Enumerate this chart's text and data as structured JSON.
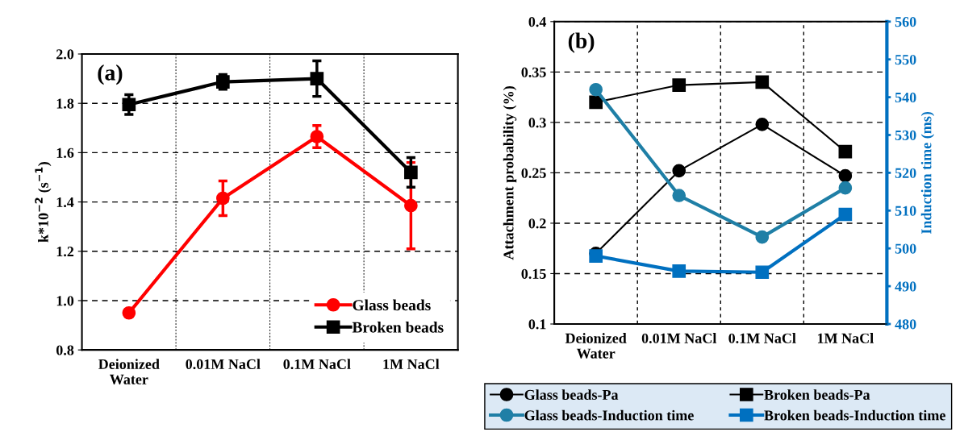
{
  "chart_data": [
    {
      "type": "line",
      "categories": [
        "Deionized\nWater",
        "0.01M NaCl",
        "0.1M NaCl",
        "1M NaCl"
      ],
      "ylabel": "k*10$^{−2}$ (s$^{−1}$)",
      "ylim": [
        0.8,
        2.0
      ],
      "yticks": [
        0.8,
        {
          "value": 1.0,
          "label": "1.0"
        },
        1.2,
        1.4,
        1.6,
        1.8,
        {
          "value": 2.0,
          "label": "2.0"
        }
      ],
      "grid": true,
      "legend": "bottom right",
      "annotations": [
        "(a)"
      ],
      "series": [
        {
          "name": "Glass beads",
          "color": "#ff0000",
          "marker": "circle",
          "values": [
            0.95,
            1.415,
            1.665,
            1.385
          ],
          "errors": [
            null,
            0.07,
            0.045,
            0.175
          ]
        },
        {
          "name": "Broken beads",
          "color": "#000000",
          "marker": "square",
          "values": [
            1.795,
            1.887,
            1.9,
            1.52
          ],
          "errors": [
            0.04,
            0.03,
            0.072,
            0.06
          ]
        }
      ]
    },
    {
      "type": "line",
      "categories": [
        "Deionized\nWater",
        "0.01M NaCl",
        "0.1M NaCl",
        "1M NaCl"
      ],
      "ylabel": "Attachment probability (%)",
      "y2label": "Induction time (ms)",
      "ylim": [
        0.1,
        0.4
      ],
      "yticks": [
        0.1,
        0.15,
        0.2,
        0.25,
        0.3,
        0.35,
        0.4
      ],
      "y2lim": [
        480,
        560
      ],
      "y2ticks": [
        480,
        490,
        500,
        510,
        520,
        530,
        540,
        550,
        560
      ],
      "grid": true,
      "legend": "bottom",
      "annotations": [
        "(b)"
      ],
      "series": [
        {
          "name": "Glass beads-Pa",
          "color": "#000000",
          "marker": "circle",
          "values": [
            0.17,
            0.252,
            0.298,
            0.247
          ]
        },
        {
          "name": "Broken beads-Pa",
          "color": "#000000",
          "marker": "square",
          "values": [
            0.32,
            0.337,
            0.34,
            0.271
          ]
        },
        {
          "name": "Glass beads-Induction time",
          "color": "#1f7fa6",
          "marker": "circle",
          "axis": "y2",
          "values": [
            542,
            514,
            503,
            516
          ]
        },
        {
          "name": "Broken beads-Induction time",
          "color": "#0070c0",
          "marker": "square",
          "axis": "y2",
          "values": [
            498,
            494,
            493.7,
            509
          ]
        }
      ]
    }
  ]
}
